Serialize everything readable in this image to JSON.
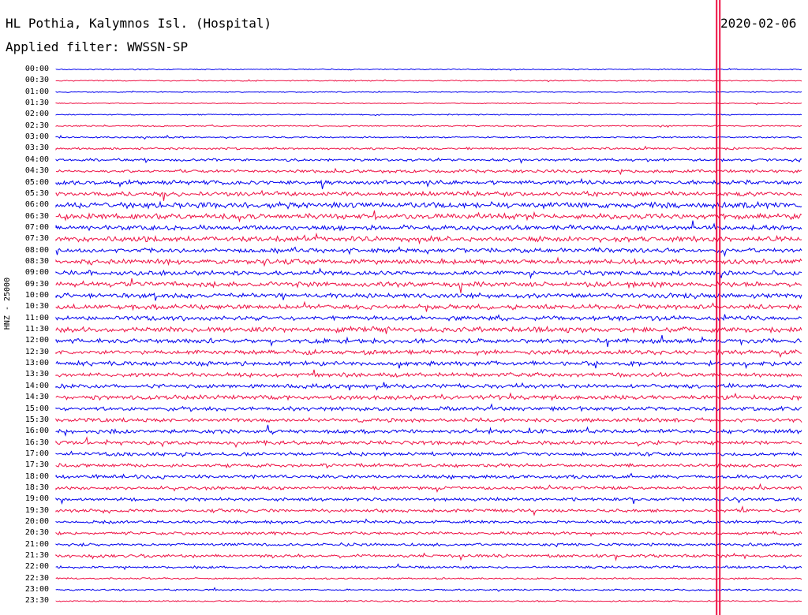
{
  "header": {
    "station": "HL Pothia, Kalymnos Isl. (Hospital)",
    "filter_line": "Applied filter: WWSSN-SP",
    "date": "2020-02-06"
  },
  "colors": {
    "even_trace": "#0000ee",
    "odd_trace": "#ee1144",
    "event_marker": "#ee1144"
  },
  "chart_data": {
    "type": "line",
    "ylabel": "HNZ - 25000",
    "trace_interval_minutes": 30,
    "time_labels": [
      "00:00",
      "00:30",
      "01:00",
      "01:30",
      "02:00",
      "02:30",
      "03:00",
      "03:30",
      "04:00",
      "04:30",
      "05:00",
      "05:30",
      "06:00",
      "06:30",
      "07:00",
      "07:30",
      "08:00",
      "08:30",
      "09:00",
      "09:30",
      "10:00",
      "10:30",
      "11:00",
      "11:30",
      "12:00",
      "12:30",
      "13:00",
      "13:30",
      "14:00",
      "14:30",
      "15:00",
      "15:30",
      "16:00",
      "16:30",
      "17:00",
      "17:30",
      "18:00",
      "18:30",
      "19:00",
      "19:30",
      "20:00",
      "20:30",
      "21:00",
      "21:30",
      "22:00",
      "22:30",
      "23:00",
      "23:30"
    ],
    "noise_level": [
      0.8,
      0.8,
      0.7,
      0.6,
      0.8,
      1.0,
      1.2,
      1.6,
      1.9,
      2.3,
      3.0,
      3.4,
      4.3,
      4.0,
      3.6,
      3.8,
      3.2,
      3.6,
      3.5,
      3.7,
      3.4,
      3.6,
      3.3,
      3.7,
      3.3,
      3.2,
      3.2,
      3.0,
      3.0,
      3.2,
      3.0,
      2.9,
      2.9,
      2.9,
      2.6,
      2.5,
      2.6,
      2.4,
      2.3,
      2.3,
      2.2,
      2.2,
      2.1,
      2.3,
      1.8,
      1.2,
      1.2,
      1.0
    ],
    "event_marker_x_fraction": 0.885
  }
}
